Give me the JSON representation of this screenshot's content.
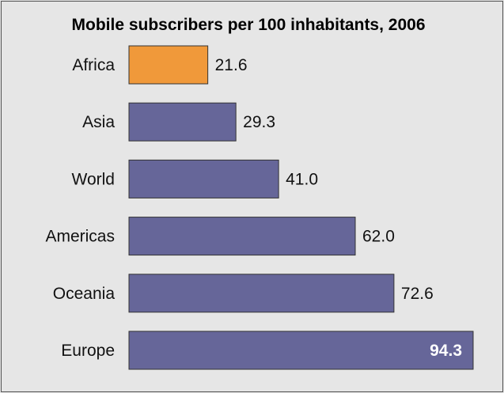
{
  "chart_data": {
    "type": "bar",
    "orientation": "horizontal",
    "title": "Mobile subscribers per 100 inhabitants, 2006",
    "categories": [
      "Africa",
      "Asia",
      "World",
      "Americas",
      "Oceania",
      "Europe"
    ],
    "values": [
      21.6,
      29.3,
      41.0,
      62.0,
      72.6,
      94.3
    ],
    "value_labels": [
      "21.6",
      "29.3",
      "41.0",
      "62.0",
      "72.6",
      "94.3"
    ],
    "highlight_index": 0,
    "colors": {
      "bar": "#666699",
      "highlight": "#f0993a",
      "bar_border": "#333333"
    },
    "xlim": [
      0,
      94.3
    ],
    "grid": false,
    "legend": "none"
  }
}
